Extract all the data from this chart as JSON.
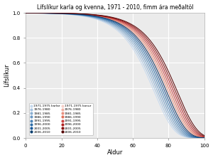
{
  "title": "Lífslíkur karla og kvenna, 1971 - 2010, fimm ára meðaltöl",
  "xlabel": "Aldur",
  "ylabel": "Lífslíkur",
  "xlim": [
    0,
    100
  ],
  "ylim": [
    0.0,
    1.0
  ],
  "xticks": [
    0,
    20,
    40,
    60,
    80,
    100
  ],
  "yticks": [
    0.0,
    0.2,
    0.4,
    0.6,
    0.8,
    1.0
  ],
  "periods": [
    "1971-1975",
    "1976-1980",
    "1981-1985",
    "1986-1990",
    "1991-1995",
    "1996-2000",
    "2001-2005",
    "2006-2010"
  ],
  "male_colors": [
    "#c6d9ee",
    "#a8c4e0",
    "#8aafd2",
    "#6c99c4",
    "#4e84b6",
    "#306fa8",
    "#1a5a9a",
    "#0a3f6e"
  ],
  "female_colors": [
    "#f5cfc8",
    "#efb0a4",
    "#e99180",
    "#e3725c",
    "#cc4444",
    "#b02222",
    "#881111",
    "#550000"
  ],
  "male_medians": [
    72,
    73,
    74,
    75,
    76,
    77,
    78,
    79
  ],
  "female_medians": [
    78,
    79,
    80,
    81,
    82,
    83,
    84,
    85
  ],
  "male_scale": [
    11,
    11,
    11,
    11,
    11,
    11,
    11,
    11
  ],
  "female_scale": [
    11,
    11,
    11,
    11,
    11,
    11,
    11,
    11
  ],
  "background_color": "#ebebeb",
  "grid_color": "#ffffff",
  "legend_labels_male": [
    "1971-1975 karlar",
    "1976-1980",
    "1981-1985",
    "1986-1990",
    "1991-1995",
    "1996-2000",
    "2001-2005",
    "2006-2010"
  ],
  "legend_labels_female": [
    "1971-1975 konur",
    "1976-1980",
    "1981-1985",
    "1986-1990",
    "1991-1995",
    "1996-2000",
    "2001-2005",
    "2006-2010"
  ]
}
